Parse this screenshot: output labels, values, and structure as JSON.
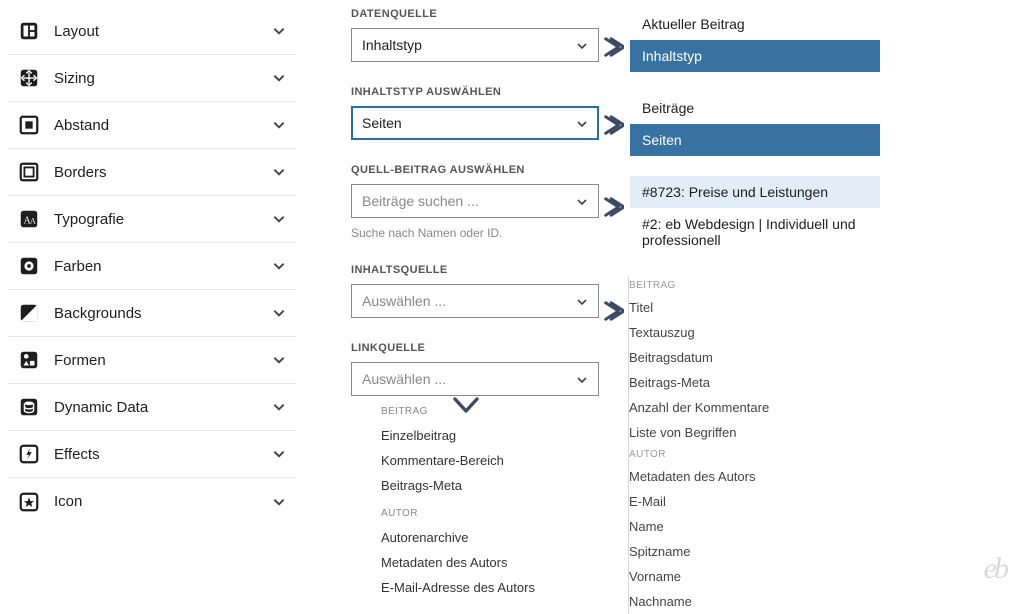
{
  "colors": {
    "accent": "#3772a3",
    "arrow": "#3d4a63",
    "border": "#8a8a8a",
    "focus_border": "#2271b1",
    "text": "#1e1e1e",
    "muted": "#888888",
    "light_selected": "#e3edf7"
  },
  "sidebar": {
    "items": [
      {
        "icon": "layout",
        "label": "Layout"
      },
      {
        "icon": "sizing",
        "label": "Sizing"
      },
      {
        "icon": "abstand",
        "label": "Abstand"
      },
      {
        "icon": "borders",
        "label": "Borders"
      },
      {
        "icon": "typografie",
        "label": "Typografie"
      },
      {
        "icon": "farben",
        "label": "Farben"
      },
      {
        "icon": "backgrounds",
        "label": "Backgrounds"
      },
      {
        "icon": "formen",
        "label": "Formen"
      },
      {
        "icon": "dynamic",
        "label": "Dynamic Data"
      },
      {
        "icon": "effects",
        "label": "Effects"
      },
      {
        "icon": "icon",
        "label": "Icon"
      }
    ]
  },
  "middle": {
    "datenquelle": {
      "label": "DATENQUELLE",
      "value": "Inhaltstyp"
    },
    "inhaltstyp": {
      "label": "INHALTSTYP AUSWÄHLEN",
      "value": "Seiten"
    },
    "quellbeitrag": {
      "label": "QUELL-BEITRAG AUSWÄHLEN",
      "placeholder": "Beiträge suchen ...",
      "helper": "Suche nach Namen oder ID."
    },
    "inhaltsquelle": {
      "label": "INHALTSQUELLE",
      "placeholder": "Auswählen ..."
    },
    "linkquelle": {
      "label": "LINKQUELLE",
      "placeholder": "Auswählen ..."
    },
    "linkquelle_dropdown": {
      "groups": [
        {
          "header": "BEITRAG",
          "items": [
            "Einzelbeitrag",
            "Kommentare-Bereich",
            "Beitrags-Meta"
          ]
        },
        {
          "header": "AUTOR",
          "items": [
            "Autorenarchive",
            "Metadaten des Autors",
            "E-Mail-Adresse des Autors"
          ]
        }
      ]
    }
  },
  "right": {
    "datenquelle_opts": [
      {
        "label": "Aktueller Beitrag",
        "selected": false
      },
      {
        "label": "Inhaltstyp",
        "selected": true
      }
    ],
    "inhaltstyp_opts": [
      {
        "label": "Beiträge",
        "selected": false
      },
      {
        "label": "Seiten",
        "selected": true
      }
    ],
    "quellbeitrag_opts": [
      {
        "label": "#8723: Preise und Leistungen",
        "light": true
      },
      {
        "label": "#2: eb Webdesign | Individuell und professionell",
        "light": false
      }
    ],
    "inhaltsquelle_groups": [
      {
        "header": "BEITRAG",
        "items": [
          "Titel",
          "Textauszug",
          "Beitragsdatum",
          "Beitrags-Meta",
          "Anzahl der Kommentare",
          "Liste von Begriffen"
        ]
      },
      {
        "header": "AUTOR",
        "items": [
          "Metadaten des Autors",
          "E-Mail",
          "Name",
          "Spitzname",
          "Vorname",
          "Nachname"
        ]
      }
    ]
  },
  "logo": "eb"
}
